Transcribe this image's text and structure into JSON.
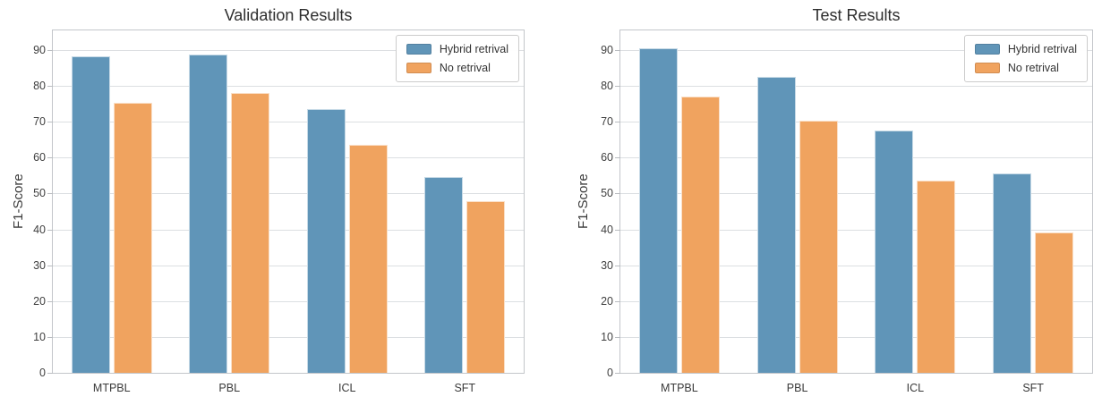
{
  "page": {
    "background": "#ffffff"
  },
  "chart_data": [
    {
      "type": "bar",
      "title": "Validation Results",
      "ylabel": "F1-Score",
      "xlabel": "",
      "categories": [
        "MTPBL",
        "PBL",
        "ICL",
        "SFT"
      ],
      "series": [
        {
          "name": "Hybrid retrival",
          "color": "#6095B8",
          "values": [
            88.2,
            88.7,
            73.6,
            54.5
          ]
        },
        {
          "name": "No retrival",
          "color": "#F0A35F",
          "values": [
            75.2,
            78.1,
            63.6,
            48.0
          ]
        }
      ],
      "yticks": [
        0,
        10,
        20,
        30,
        40,
        50,
        60,
        70,
        80,
        90
      ],
      "ylim": [
        0,
        95.5
      ],
      "grid": "horizontal",
      "legend_position": "upper-right"
    },
    {
      "type": "bar",
      "title": "Test Results",
      "ylabel": "F1-Score",
      "xlabel": "",
      "categories": [
        "MTPBL",
        "PBL",
        "ICL",
        "SFT"
      ],
      "series": [
        {
          "name": "Hybrid retrival",
          "color": "#6095B8",
          "values": [
            90.4,
            82.6,
            67.5,
            55.7
          ]
        },
        {
          "name": "No retrival",
          "color": "#F0A35F",
          "values": [
            77.1,
            70.2,
            53.5,
            39.1
          ]
        }
      ],
      "yticks": [
        0,
        10,
        20,
        30,
        40,
        50,
        60,
        70,
        80,
        90
      ],
      "ylim": [
        0,
        95.5
      ],
      "grid": "horizontal",
      "legend_position": "upper-right"
    }
  ],
  "style": {
    "grid_color": "#dcdfe2",
    "spine_color": "#c3c6ca",
    "title_color": "#2d2d2d",
    "tick_label_color": "#3a3a3a",
    "legend_border_color": "#cccccc"
  }
}
